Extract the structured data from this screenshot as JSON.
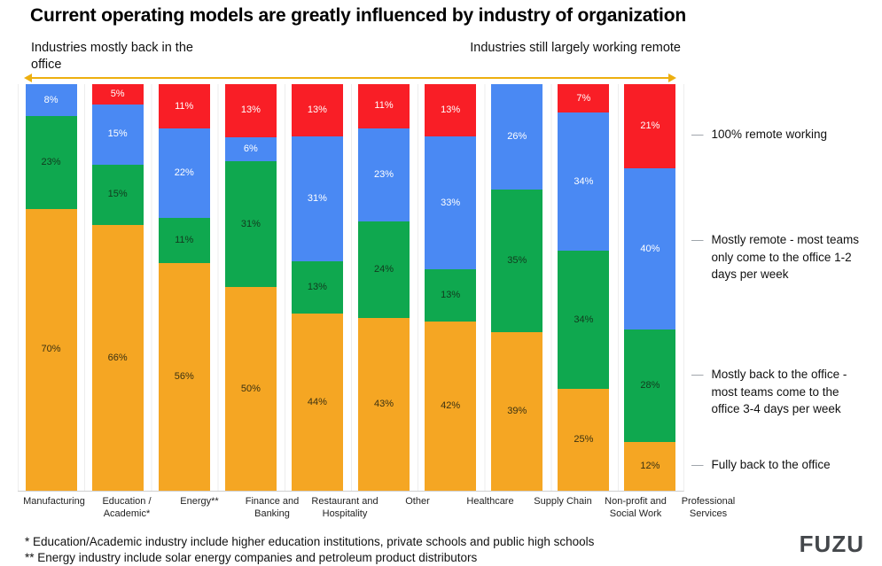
{
  "title": "Current operating models are greatly influenced by industry of organization",
  "annotations": {
    "left": "Industries mostly back in the office",
    "right": "Industries still largely working remote"
  },
  "legend": [
    {
      "label": "100% remote working",
      "color": "#F91E26"
    },
    {
      "label": "Mostly remote - most teams only come to the office 1-2 days per week",
      "color": "#4A89F3"
    },
    {
      "label": "Mostly back to the office - most teams come to the office 3-4 days per week",
      "color": "#0FA84F"
    },
    {
      "label": "Fully back to the office",
      "color": "#F5A623"
    }
  ],
  "footnotes": [
    "* Education/Academic industry include higher education institutions, private schools and public high schools",
    "** Energy industry include solar energy companies and petroleum product distributors"
  ],
  "logo_text": "FUZU",
  "chart_data": {
    "type": "bar",
    "stacked": true,
    "title": "Current operating models are greatly influenced by industry of organization",
    "value_suffix": "%",
    "ylim": [
      0,
      100
    ],
    "grid": "vertical-light",
    "legend_position": "right",
    "categories": [
      "Manufacturing",
      "Education / Academic*",
      "Energy**",
      "Finance and Banking",
      "Restaurant and Hospitality",
      "Other",
      "Healthcare",
      "Supply Chain",
      "Non-profit and Social Work",
      "Professional Services"
    ],
    "series": [
      {
        "name": "Fully back to the office",
        "color": "#F5A623",
        "text_color": "#3A3112",
        "values": [
          70,
          66,
          56,
          50,
          44,
          43,
          42,
          39,
          25,
          12
        ]
      },
      {
        "name": "Mostly back to the office - most teams come to the office 3-4 days per week",
        "color": "#0FA84F",
        "text_color": "#123A1E",
        "values": [
          23,
          15,
          11,
          31,
          13,
          24,
          13,
          35,
          34,
          28
        ]
      },
      {
        "name": "Mostly remote - most teams only come to the office 1-2 days per week",
        "color": "#4A89F3",
        "text_color": "#FFFFFF",
        "values": [
          8,
          15,
          22,
          6,
          31,
          23,
          33,
          26,
          34,
          40
        ]
      },
      {
        "name": "100% remote working",
        "color": "#F91E26",
        "text_color": "#FFFFFF",
        "values": [
          0,
          5,
          11,
          13,
          13,
          11,
          13,
          0,
          7,
          21
        ]
      }
    ]
  }
}
